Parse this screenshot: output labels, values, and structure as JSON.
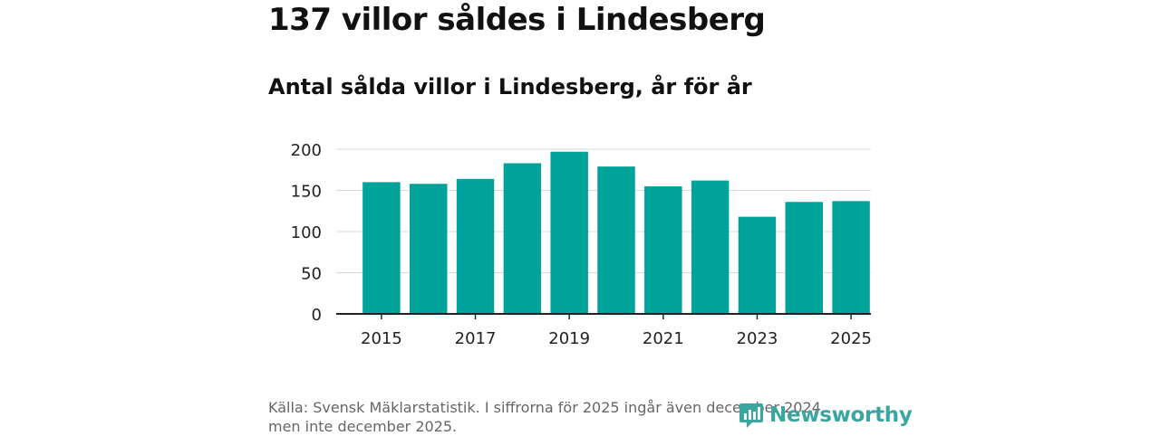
{
  "header": {
    "title": "137 villor såldes i Lindesberg",
    "subtitle": "Antal sålda villor i Lindesberg, år för år"
  },
  "chart_data": {
    "type": "bar",
    "title": "Antal sålda villor i Lindesberg, år för år",
    "xlabel": "",
    "ylabel": "",
    "categories": [
      "2015",
      "2016",
      "2017",
      "2018",
      "2019",
      "2020",
      "2021",
      "2022",
      "2023",
      "2024",
      "2025"
    ],
    "values": [
      160,
      158,
      164,
      183,
      197,
      179,
      155,
      162,
      118,
      136,
      137
    ],
    "x_tick_labels": [
      "2015",
      "2017",
      "2019",
      "2021",
      "2023",
      "2025"
    ],
    "y_ticks": [
      0,
      50,
      100,
      150,
      200
    ],
    "ylim": [
      0,
      200
    ],
    "grid": true,
    "bar_color": "#00a39a"
  },
  "footer": {
    "source_line1": "Källa: Svensk Mäklarstatistik. I siffrorna för 2025 ingår även december 2024",
    "source_line2": "men inte december 2025.",
    "brand_name": "Newsworthy",
    "brand_icon": "newsworthy-logo-icon",
    "brand_color": "#3aa6a0"
  }
}
